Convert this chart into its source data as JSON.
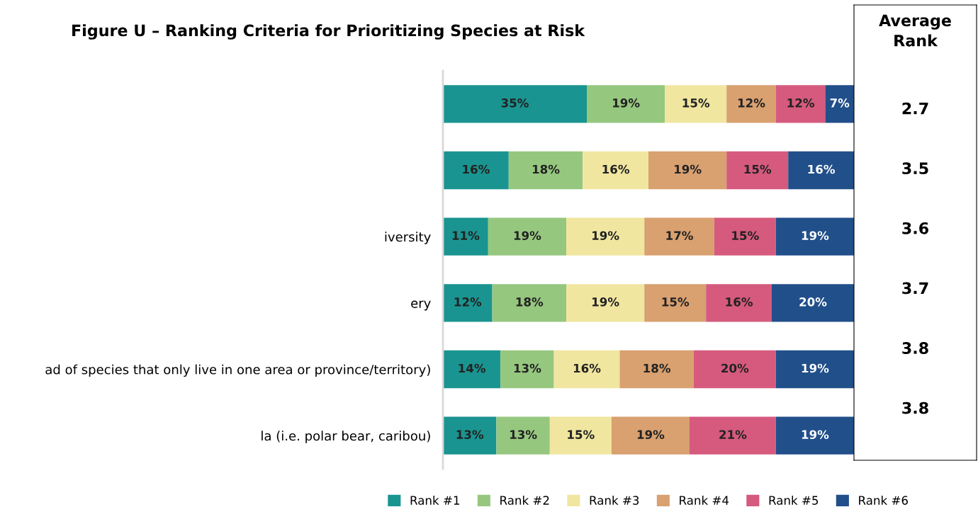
{
  "chart_data": {
    "type": "bar",
    "orientation": "horizontal",
    "stacked": true,
    "title": "Figure U – Ranking Criteria for Prioritizing Species at Risk",
    "categories": [
      null,
      null,
      "iversity",
      "ery",
      "ad of species that only live in one area or province/territory)",
      "la (i.e. polar bear, caribou)"
    ],
    "series": [
      {
        "name": "Rank #1",
        "color": "#1a9490",
        "values": [
          35,
          16,
          11,
          12,
          14,
          13
        ],
        "value_labels": [
          "35%",
          "16%",
          "11%",
          "12%",
          "14%",
          "13%"
        ]
      },
      {
        "name": "Rank #2",
        "color": "#96c77f",
        "values": [
          19,
          18,
          19,
          18,
          13,
          13
        ],
        "value_labels": [
          "19%",
          "18%",
          "19%",
          "18%",
          "13%",
          "13%"
        ]
      },
      {
        "name": "Rank #3",
        "color": "#f0e6a0",
        "values": [
          15,
          16,
          19,
          19,
          16,
          15
        ],
        "value_labels": [
          "15%",
          "16%",
          "19%",
          "19%",
          "16%",
          "15%"
        ]
      },
      {
        "name": "Rank #4",
        "color": "#d9a070",
        "values": [
          12,
          19,
          17,
          15,
          18,
          19
        ],
        "value_labels": [
          "12%",
          "19%",
          "17%",
          "15%",
          "18%",
          "19%"
        ]
      },
      {
        "name": "Rank #5",
        "color": "#d55a7e",
        "values": [
          12,
          15,
          15,
          16,
          20,
          21
        ],
        "value_labels": [
          "12%",
          "15%",
          "15%",
          "16%",
          "20%",
          "21%"
        ]
      },
      {
        "name": "Rank #6",
        "color": "#214f8a",
        "values": [
          7,
          16,
          19,
          20,
          19,
          19
        ],
        "value_labels": [
          "7%",
          "16%",
          "19%",
          "20%",
          "19%",
          "19%"
        ]
      }
    ],
    "annotations": [
      "Average\nRank",
      "2.7",
      "3.5",
      "3.6",
      "3.7",
      "3.8",
      "3.8"
    ],
    "tick_labels": "y",
    "legend": "bottom",
    "grid": false
  }
}
